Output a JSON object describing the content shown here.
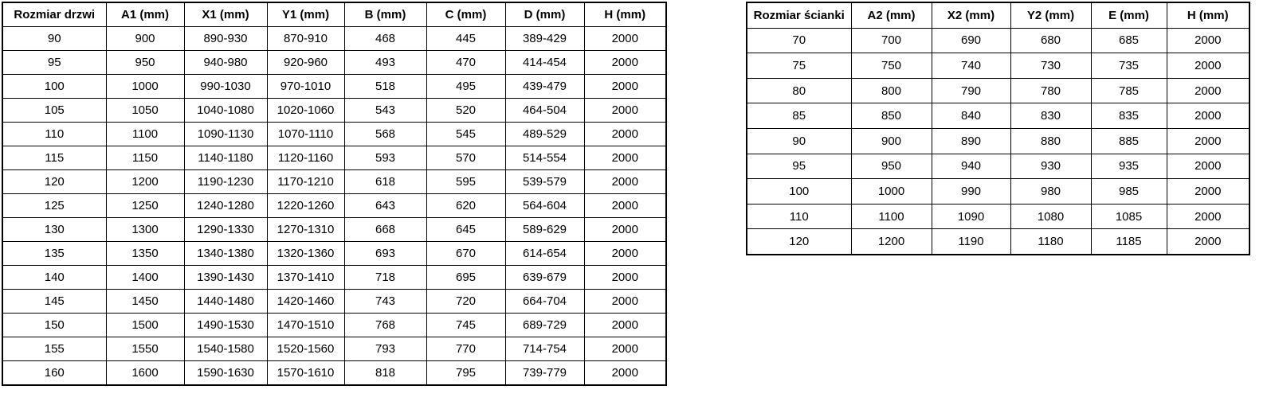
{
  "page": {
    "background_color": "#ffffff",
    "border_color": "#000000",
    "text_color": "#000000"
  },
  "tables": [
    {
      "name": "door-sizes",
      "title_column": "Rozmiar drzwi",
      "headers": [
        "Rozmiar drzwi",
        "A1 (mm)",
        "X1 (mm)",
        "Y1 (mm)",
        "B (mm)",
        "C (mm)",
        "D (mm)",
        "H (mm)"
      ],
      "rows": [
        [
          "90",
          "900",
          "890-930",
          "870-910",
          "468",
          "445",
          "389-429",
          "2000"
        ],
        [
          "95",
          "950",
          "940-980",
          "920-960",
          "493",
          "470",
          "414-454",
          "2000"
        ],
        [
          "100",
          "1000",
          "990-1030",
          "970-1010",
          "518",
          "495",
          "439-479",
          "2000"
        ],
        [
          "105",
          "1050",
          "1040-1080",
          "1020-1060",
          "543",
          "520",
          "464-504",
          "2000"
        ],
        [
          "110",
          "1100",
          "1090-1130",
          "1070-1110",
          "568",
          "545",
          "489-529",
          "2000"
        ],
        [
          "115",
          "1150",
          "1140-1180",
          "1120-1160",
          "593",
          "570",
          "514-554",
          "2000"
        ],
        [
          "120",
          "1200",
          "1190-1230",
          "1170-1210",
          "618",
          "595",
          "539-579",
          "2000"
        ],
        [
          "125",
          "1250",
          "1240-1280",
          "1220-1260",
          "643",
          "620",
          "564-604",
          "2000"
        ],
        [
          "130",
          "1300",
          "1290-1330",
          "1270-1310",
          "668",
          "645",
          "589-629",
          "2000"
        ],
        [
          "135",
          "1350",
          "1340-1380",
          "1320-1360",
          "693",
          "670",
          "614-654",
          "2000"
        ],
        [
          "140",
          "1400",
          "1390-1430",
          "1370-1410",
          "718",
          "695",
          "639-679",
          "2000"
        ],
        [
          "145",
          "1450",
          "1440-1480",
          "1420-1460",
          "743",
          "720",
          "664-704",
          "2000"
        ],
        [
          "150",
          "1500",
          "1490-1530",
          "1470-1510",
          "768",
          "745",
          "689-729",
          "2000"
        ],
        [
          "155",
          "1550",
          "1540-1580",
          "1520-1560",
          "793",
          "770",
          "714-754",
          "2000"
        ],
        [
          "160",
          "1600",
          "1590-1630",
          "1570-1610",
          "818",
          "795",
          "739-779",
          "2000"
        ]
      ]
    },
    {
      "name": "wall-panel-sizes",
      "title_column": "Rozmiar ścianki",
      "headers": [
        "Rozmiar ścianki",
        "A2 (mm)",
        "X2 (mm)",
        "Y2 (mm)",
        "E (mm)",
        "H (mm)"
      ],
      "rows": [
        [
          "70",
          "700",
          "690",
          "680",
          "685",
          "2000"
        ],
        [
          "75",
          "750",
          "740",
          "730",
          "735",
          "2000"
        ],
        [
          "80",
          "800",
          "790",
          "780",
          "785",
          "2000"
        ],
        [
          "85",
          "850",
          "840",
          "830",
          "835",
          "2000"
        ],
        [
          "90",
          "900",
          "890",
          "880",
          "885",
          "2000"
        ],
        [
          "95",
          "950",
          "940",
          "930",
          "935",
          "2000"
        ],
        [
          "100",
          "1000",
          "990",
          "980",
          "985",
          "2000"
        ],
        [
          "110",
          "1100",
          "1090",
          "1080",
          "1085",
          "2000"
        ],
        [
          "120",
          "1200",
          "1190",
          "1180",
          "1185",
          "2000"
        ]
      ]
    }
  ]
}
